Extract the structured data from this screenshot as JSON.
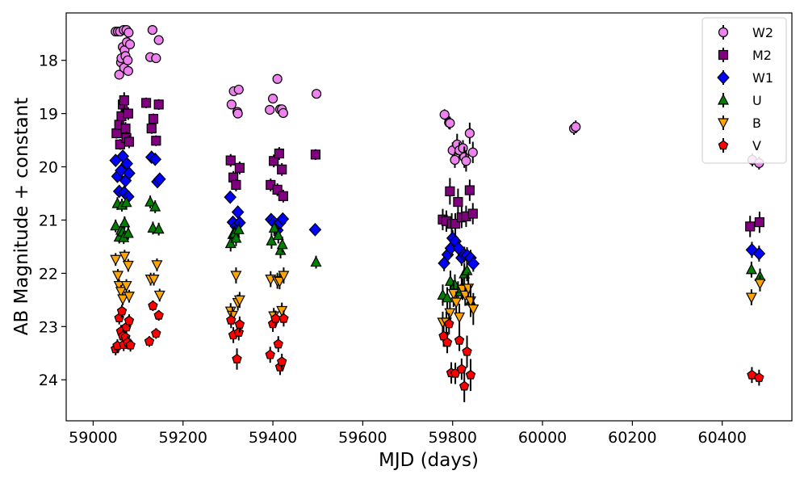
{
  "chart_data": {
    "type": "scatter",
    "title": "",
    "xlabel": "MJD (days)",
    "ylabel": "AB Magnitude + constant",
    "xlim": [
      58940,
      60555
    ],
    "ylim": [
      24.77,
      17.11
    ],
    "y_inverted": true,
    "grid": false,
    "legend_position": "top-right",
    "xticks": [
      59000,
      59200,
      59400,
      59600,
      59800,
      60000,
      60200,
      60400
    ],
    "yticks": [
      18,
      19,
      20,
      21,
      22,
      23,
      24
    ],
    "series": [
      {
        "name": "W2",
        "marker": "circle",
        "color": "#ee82ee",
        "points": [
          [
            59050,
            17.46
          ],
          [
            59055,
            17.46
          ],
          [
            59058,
            18.27
          ],
          [
            59060,
            17.46
          ],
          [
            59062,
            18.04
          ],
          [
            59063,
            17.96
          ],
          [
            59066,
            17.75
          ],
          [
            59068,
            17.43
          ],
          [
            59069,
            18.14
          ],
          [
            59070,
            17.81
          ],
          [
            59072,
            17.92
          ],
          [
            59074,
            17.43
          ],
          [
            59075,
            17.66
          ],
          [
            59077,
            18.0
          ],
          [
            59078,
            18.2
          ],
          [
            59079,
            17.48
          ],
          [
            59082,
            17.7
          ],
          [
            59127,
            17.94
          ],
          [
            59132,
            17.43
          ],
          [
            59140,
            17.96
          ],
          [
            59146,
            17.62
          ],
          [
            59308,
            18.83
          ],
          [
            59313,
            18.58
          ],
          [
            59321,
            18.97
          ],
          [
            59322,
            19.0
          ],
          [
            59324,
            18.55
          ],
          [
            59393,
            18.93
          ],
          [
            59400,
            18.72
          ],
          [
            59410,
            18.35
          ],
          [
            59416,
            18.92
          ],
          [
            59420,
            18.92
          ],
          [
            59423,
            18.99
          ],
          [
            59497,
            18.63
          ],
          [
            59782,
            19.02
          ],
          [
            59792,
            19.17
          ],
          [
            59794,
            19.18
          ],
          [
            59800,
            19.69
          ],
          [
            59805,
            19.87
          ],
          [
            59810,
            19.58
          ],
          [
            59815,
            19.69
          ],
          [
            59823,
            19.65
          ],
          [
            59826,
            19.82
          ],
          [
            59830,
            19.89
          ],
          [
            59838,
            19.37
          ],
          [
            59845,
            19.73
          ],
          [
            60070,
            19.28
          ],
          [
            60074,
            19.25
          ],
          [
            60467,
            19.87
          ],
          [
            60482,
            19.93
          ]
        ],
        "yerr": [
          0,
          0,
          0.05,
          0,
          0.05,
          0.05,
          0.05,
          0,
          0.05,
          0.05,
          0.05,
          0,
          0.05,
          0.05,
          0.05,
          0,
          0.05,
          0.05,
          0,
          0.05,
          0.05,
          0.08,
          0.08,
          0.08,
          0.08,
          0.08,
          0.06,
          0.06,
          0.06,
          0.06,
          0.06,
          0.06,
          0.06,
          0.1,
          0.12,
          0.12,
          0.15,
          0.15,
          0.2,
          0.15,
          0.15,
          0.2,
          0.2,
          0.2,
          0.2,
          0.12,
          0.12,
          0.12,
          0.12
        ]
      },
      {
        "name": "M2",
        "marker": "square",
        "color": "#800080",
        "points": [
          [
            59052,
            19.37
          ],
          [
            59058,
            19.21
          ],
          [
            59060,
            19.58
          ],
          [
            59063,
            19.05
          ],
          [
            59066,
            18.83
          ],
          [
            59069,
            18.75
          ],
          [
            59072,
            19.28
          ],
          [
            59074,
            19.46
          ],
          [
            59078,
            19.0
          ],
          [
            59080,
            19.53
          ],
          [
            59118,
            18.8
          ],
          [
            59130,
            19.28
          ],
          [
            59134,
            19.1
          ],
          [
            59140,
            19.51
          ],
          [
            59146,
            18.83
          ],
          [
            59306,
            19.88
          ],
          [
            59312,
            20.2
          ],
          [
            59318,
            20.34
          ],
          [
            59326,
            20.02
          ],
          [
            59395,
            20.34
          ],
          [
            59402,
            19.89
          ],
          [
            59410,
            20.43
          ],
          [
            59414,
            19.75
          ],
          [
            59420,
            20.05
          ],
          [
            59423,
            20.55
          ],
          [
            59495,
            19.77
          ],
          [
            59778,
            20.99
          ],
          [
            59786,
            21.02
          ],
          [
            59794,
            20.46
          ],
          [
            59798,
            21.07
          ],
          [
            59806,
            21.07
          ],
          [
            59812,
            20.66
          ],
          [
            59820,
            20.95
          ],
          [
            59830,
            20.93
          ],
          [
            59838,
            20.44
          ],
          [
            59845,
            20.88
          ],
          [
            60462,
            21.12
          ],
          [
            60483,
            21.04
          ]
        ],
        "yerr": [
          0.1,
          0.1,
          0.1,
          0.15,
          0.15,
          0.15,
          0.12,
          0.12,
          0.12,
          0.12,
          0.1,
          0.1,
          0.1,
          0.1,
          0.1,
          0.12,
          0.12,
          0.12,
          0.12,
          0.12,
          0.12,
          0.12,
          0.12,
          0.12,
          0.12,
          0.1,
          0.2,
          0.2,
          0.25,
          0.2,
          0.2,
          0.25,
          0.2,
          0.2,
          0.2,
          0.2,
          0.2,
          0.2
        ]
      },
      {
        "name": "W1",
        "marker": "diamond",
        "color": "#0000ff",
        "points": [
          [
            59050,
            19.88
          ],
          [
            59054,
            20.18
          ],
          [
            59058,
            20.46
          ],
          [
            59062,
            20.07
          ],
          [
            59066,
            19.8
          ],
          [
            59069,
            20.48
          ],
          [
            59072,
            20.26
          ],
          [
            59075,
            19.94
          ],
          [
            59078,
            20.56
          ],
          [
            59080,
            20.12
          ],
          [
            59130,
            19.82
          ],
          [
            59138,
            19.86
          ],
          [
            59143,
            20.28
          ],
          [
            59148,
            20.23
          ],
          [
            59305,
            20.57
          ],
          [
            59311,
            21.04
          ],
          [
            59318,
            21.12
          ],
          [
            59322,
            20.85
          ],
          [
            59326,
            21.05
          ],
          [
            59396,
            20.99
          ],
          [
            59402,
            21.04
          ],
          [
            59410,
            21.19
          ],
          [
            59416,
            21.05
          ],
          [
            59422,
            20.98
          ],
          [
            59494,
            21.18
          ],
          [
            59781,
            21.81
          ],
          [
            59789,
            21.65
          ],
          [
            59796,
            21.53
          ],
          [
            59800,
            21.34
          ],
          [
            59806,
            21.4
          ],
          [
            59813,
            21.53
          ],
          [
            59820,
            21.71
          ],
          [
            59826,
            21.65
          ],
          [
            59832,
            21.66
          ],
          [
            59840,
            21.71
          ],
          [
            59846,
            21.82
          ],
          [
            60466,
            21.56
          ],
          [
            60482,
            21.63
          ]
        ],
        "yerr": [
          0.08,
          0.08,
          0.08,
          0.08,
          0.08,
          0.08,
          0.08,
          0.08,
          0.08,
          0.08,
          0.08,
          0.08,
          0.08,
          0.08,
          0.1,
          0.1,
          0.1,
          0.1,
          0.1,
          0.1,
          0.1,
          0.1,
          0.1,
          0.1,
          0.1,
          0.15,
          0.15,
          0.15,
          0.15,
          0.15,
          0.15,
          0.15,
          0.15,
          0.15,
          0.15,
          0.15,
          0.15,
          0.15
        ]
      },
      {
        "name": "U",
        "marker": "triangle-up",
        "color": "#008000",
        "points": [
          [
            59050,
            21.11
          ],
          [
            59054,
            20.69
          ],
          [
            59058,
            21.32
          ],
          [
            59062,
            21.19
          ],
          [
            59064,
            20.72
          ],
          [
            59066,
            21.22
          ],
          [
            59068,
            21.33
          ],
          [
            59070,
            21.05
          ],
          [
            59074,
            20.67
          ],
          [
            59078,
            21.25
          ],
          [
            59127,
            20.66
          ],
          [
            59133,
            21.15
          ],
          [
            59138,
            20.75
          ],
          [
            59146,
            21.17
          ],
          [
            59306,
            21.44
          ],
          [
            59311,
            21.27
          ],
          [
            59315,
            21.25
          ],
          [
            59318,
            21.34
          ],
          [
            59324,
            21.18
          ],
          [
            59397,
            21.39
          ],
          [
            59403,
            21.15
          ],
          [
            59412,
            21.29
          ],
          [
            59417,
            21.57
          ],
          [
            59421,
            21.46
          ],
          [
            59496,
            21.79
          ],
          [
            59778,
            22.41
          ],
          [
            59788,
            22.46
          ],
          [
            59795,
            22.15
          ],
          [
            59805,
            22.22
          ],
          [
            59812,
            22.35
          ],
          [
            59820,
            22.28
          ],
          [
            59826,
            22.01
          ],
          [
            59832,
            21.95
          ],
          [
            59840,
            22.52
          ],
          [
            60465,
            21.93
          ],
          [
            60484,
            22.06
          ]
        ],
        "yerr": [
          0.12,
          0.12,
          0.12,
          0.12,
          0.12,
          0.12,
          0.12,
          0.12,
          0.12,
          0.12,
          0.12,
          0.12,
          0.12,
          0.12,
          0.15,
          0.15,
          0.15,
          0.15,
          0.15,
          0.15,
          0.15,
          0.15,
          0.15,
          0.15,
          0.12,
          0.2,
          0.2,
          0.2,
          0.2,
          0.2,
          0.2,
          0.2,
          0.2,
          0.25,
          0.15,
          0.15
        ]
      },
      {
        "name": "B",
        "marker": "triangle-down",
        "color": "#ffa500",
        "points": [
          [
            59050,
            21.74
          ],
          [
            59055,
            22.04
          ],
          [
            59058,
            22.23
          ],
          [
            59062,
            22.34
          ],
          [
            59066,
            22.48
          ],
          [
            59070,
            21.68
          ],
          [
            59074,
            22.23
          ],
          [
            59078,
            21.85
          ],
          [
            59080,
            22.43
          ],
          [
            59128,
            22.11
          ],
          [
            59135,
            22.11
          ],
          [
            59142,
            21.84
          ],
          [
            59148,
            22.41
          ],
          [
            59306,
            22.71
          ],
          [
            59310,
            22.79
          ],
          [
            59318,
            22.04
          ],
          [
            59322,
            22.55
          ],
          [
            59326,
            22.5
          ],
          [
            59395,
            22.11
          ],
          [
            59402,
            22.8
          ],
          [
            59410,
            22.14
          ],
          [
            59415,
            22.15
          ],
          [
            59420,
            22.7
          ],
          [
            59424,
            22.04
          ],
          [
            59778,
            22.92
          ],
          [
            59786,
            22.92
          ],
          [
            59794,
            22.74
          ],
          [
            59802,
            22.38
          ],
          [
            59808,
            22.54
          ],
          [
            59815,
            22.82
          ],
          [
            59822,
            22.3
          ],
          [
            59828,
            22.41
          ],
          [
            59835,
            22.28
          ],
          [
            59840,
            22.52
          ],
          [
            59846,
            22.67
          ],
          [
            60465,
            22.45
          ],
          [
            60484,
            22.19
          ]
        ],
        "yerr": [
          0.12,
          0.12,
          0.12,
          0.12,
          0.12,
          0.12,
          0.12,
          0.12,
          0.12,
          0.12,
          0.12,
          0.12,
          0.12,
          0.15,
          0.15,
          0.15,
          0.15,
          0.15,
          0.15,
          0.15,
          0.15,
          0.15,
          0.15,
          0.15,
          0.2,
          0.2,
          0.2,
          0.25,
          0.2,
          0.25,
          0.2,
          0.2,
          0.3,
          0.3,
          0.3,
          0.15,
          0.15
        ]
      },
      {
        "name": "V",
        "marker": "pentagon",
        "color": "#ff0000",
        "points": [
          [
            59050,
            23.42
          ],
          [
            59054,
            23.36
          ],
          [
            59058,
            22.84
          ],
          [
            59062,
            23.09
          ],
          [
            59064,
            22.71
          ],
          [
            59066,
            23.18
          ],
          [
            59068,
            23.34
          ],
          [
            59072,
            23.2
          ],
          [
            59074,
            23.01
          ],
          [
            59077,
            23.3
          ],
          [
            59080,
            22.89
          ],
          [
            59083,
            23.35
          ],
          [
            59125,
            23.28
          ],
          [
            59133,
            22.61
          ],
          [
            59140,
            23.13
          ],
          [
            59146,
            22.79
          ],
          [
            59307,
            22.88
          ],
          [
            59312,
            23.16
          ],
          [
            59320,
            23.61
          ],
          [
            59324,
            23.11
          ],
          [
            59326,
            22.96
          ],
          [
            59394,
            23.53
          ],
          [
            59400,
            22.95
          ],
          [
            59406,
            22.85
          ],
          [
            59412,
            23.33
          ],
          [
            59416,
            23.76
          ],
          [
            59420,
            23.66
          ],
          [
            59424,
            22.85
          ],
          [
            59780,
            23.18
          ],
          [
            59788,
            23.3
          ],
          [
            59792,
            22.95
          ],
          [
            59797,
            23.87
          ],
          [
            59806,
            23.88
          ],
          [
            59815,
            23.26
          ],
          [
            59820,
            23.8
          ],
          [
            59826,
            24.12
          ],
          [
            59832,
            23.47
          ],
          [
            59840,
            23.91
          ],
          [
            60466,
            23.91
          ],
          [
            60482,
            23.96
          ]
        ],
        "yerr": [
          0.12,
          0.12,
          0.12,
          0.12,
          0.12,
          0.12,
          0.12,
          0.12,
          0.12,
          0.12,
          0.12,
          0.12,
          0.1,
          0.1,
          0.1,
          0.1,
          0.15,
          0.15,
          0.2,
          0.15,
          0.15,
          0.15,
          0.15,
          0.15,
          0.15,
          0.15,
          0.15,
          0.15,
          0.2,
          0.2,
          0.2,
          0.2,
          0.2,
          0.2,
          0.2,
          0.3,
          0.3,
          0.3,
          0.15,
          0.15
        ]
      }
    ]
  }
}
